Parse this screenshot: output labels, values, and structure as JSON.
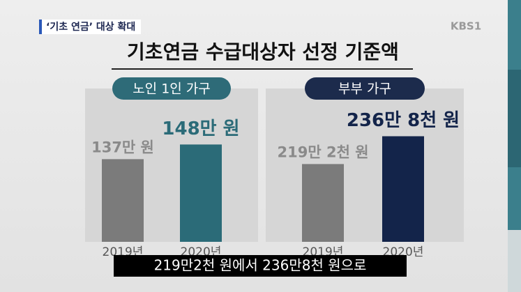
{
  "header": "‘기초 연금’ 대상 확대",
  "logo": "KBS1",
  "title": "기초연금 수급대상자 선정 기준액",
  "caption": "219만2천 원에서 236만8천 원으로",
  "chart_data": [
    {
      "type": "bar",
      "title": "노인 1인 가구",
      "categories": [
        "2019년",
        "2020년"
      ],
      "values": [
        137,
        148
      ],
      "value_labels": [
        "137만 원",
        "148만 원"
      ],
      "colors": [
        "#7b7b7b",
        "#2b6b78"
      ],
      "title_color": "#2e6b78",
      "ylim": [
        75,
        190
      ]
    },
    {
      "type": "bar",
      "title": "부부 가구",
      "categories": [
        "2019년",
        "2020년"
      ],
      "values": [
        219.2,
        236.8
      ],
      "value_labels": [
        "219만 2천 원",
        "236만 8천 원"
      ],
      "colors": [
        "#7b7b7b",
        "#13244a"
      ],
      "title_color": "#1c2b4c",
      "ylim": [
        170,
        267
      ]
    }
  ]
}
